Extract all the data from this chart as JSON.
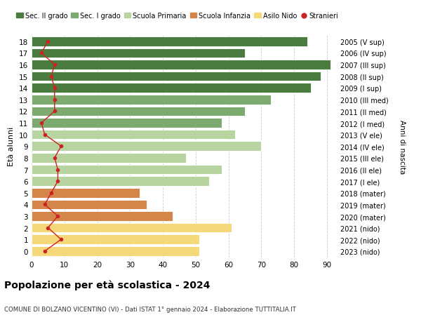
{
  "ages": [
    18,
    17,
    16,
    15,
    14,
    13,
    12,
    11,
    10,
    9,
    8,
    7,
    6,
    5,
    4,
    3,
    2,
    1,
    0
  ],
  "right_labels": [
    "2005 (V sup)",
    "2006 (IV sup)",
    "2007 (III sup)",
    "2008 (II sup)",
    "2009 (I sup)",
    "2010 (III med)",
    "2011 (II med)",
    "2012 (I med)",
    "2013 (V ele)",
    "2014 (IV ele)",
    "2015 (III ele)",
    "2016 (II ele)",
    "2017 (I ele)",
    "2018 (mater)",
    "2019 (mater)",
    "2020 (mater)",
    "2021 (nido)",
    "2022 (nido)",
    "2023 (nido)"
  ],
  "bar_values": [
    84,
    65,
    91,
    88,
    85,
    73,
    65,
    58,
    62,
    70,
    47,
    58,
    54,
    33,
    35,
    43,
    61,
    51,
    51
  ],
  "bar_colors": [
    "#4a7c3f",
    "#4a7c3f",
    "#4a7c3f",
    "#4a7c3f",
    "#4a7c3f",
    "#7daa6e",
    "#7daa6e",
    "#7daa6e",
    "#b8d4a0",
    "#b8d4a0",
    "#b8d4a0",
    "#b8d4a0",
    "#b8d4a0",
    "#d4854a",
    "#d4854a",
    "#d4854a",
    "#f5d87a",
    "#f5d87a",
    "#f5d87a"
  ],
  "stranieri_values": [
    5,
    3,
    7,
    6,
    7,
    7,
    7,
    3,
    4,
    9,
    7,
    8,
    8,
    6,
    4,
    8,
    5,
    9,
    4
  ],
  "legend_labels": [
    "Sec. II grado",
    "Sec. I grado",
    "Scuola Primaria",
    "Scuola Infanzia",
    "Asilo Nido",
    "Stranieri"
  ],
  "legend_colors": [
    "#4a7c3f",
    "#7daa6e",
    "#b8d4a0",
    "#d4854a",
    "#f5d87a",
    "#cc2222"
  ],
  "xlim": [
    0,
    93
  ],
  "xticks": [
    0,
    10,
    20,
    30,
    40,
    50,
    60,
    70,
    80,
    90
  ],
  "ylabel": "Età alunni",
  "right_ylabel": "Anni di nascita",
  "title": "Popolazione per età scolastica - 2024",
  "subtitle": "COMUNE DI BOLZANO VICENTINO (VI) - Dati ISTAT 1° gennaio 2024 - Elaborazione TUTTITALIA.IT",
  "bg_color": "#ffffff",
  "grid_color": "#cccccc"
}
